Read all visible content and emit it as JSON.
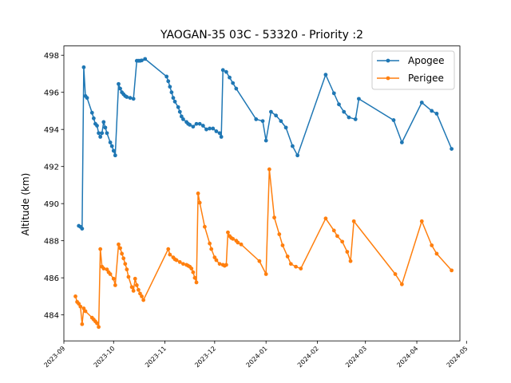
{
  "chart_data": {
    "type": "line",
    "title": "YAOGAN-35 03C - 53320 - Priority :2",
    "xlabel": "",
    "ylabel": "Altitude (km)",
    "x_axis_type": "date",
    "xlim": [
      "2023-09-01",
      "2024-04-27"
    ],
    "ylim": [
      482.6,
      498.5
    ],
    "x_ticks": [
      "2023-09",
      "2023-10",
      "2023-11",
      "2023-12",
      "2024-01",
      "2024-02",
      "2024-03",
      "2024-04",
      "2024-05"
    ],
    "y_ticks": [
      484,
      486,
      488,
      490,
      492,
      494,
      496,
      498
    ],
    "grid": false,
    "legend": "top-right",
    "series": [
      {
        "name": "Apogee",
        "color": "#1f77b4",
        "marker": "circle",
        "points": [
          [
            "2023-09-10",
            488.8
          ],
          [
            "2023-09-11",
            488.75
          ],
          [
            "2023-09-12",
            488.65
          ],
          [
            "2023-09-13",
            497.35
          ],
          [
            "2023-09-14",
            495.8
          ],
          [
            "2023-09-15",
            495.7
          ],
          [
            "2023-09-18",
            494.9
          ],
          [
            "2023-09-19",
            494.6
          ],
          [
            "2023-09-20",
            494.3
          ],
          [
            "2023-09-21",
            494.2
          ],
          [
            "2023-09-22",
            493.8
          ],
          [
            "2023-09-23",
            493.6
          ],
          [
            "2023-09-24",
            493.8
          ],
          [
            "2023-09-25",
            494.4
          ],
          [
            "2023-09-26",
            494.1
          ],
          [
            "2023-09-27",
            493.8
          ],
          [
            "2023-09-29",
            493.3
          ],
          [
            "2023-09-30",
            493.1
          ],
          [
            "2023-10-01",
            492.85
          ],
          [
            "2023-10-02",
            492.6
          ],
          [
            "2023-10-04",
            496.45
          ],
          [
            "2023-10-05",
            496.2
          ],
          [
            "2023-10-06",
            496.0
          ],
          [
            "2023-10-07",
            495.9
          ],
          [
            "2023-10-08",
            495.8
          ],
          [
            "2023-10-09",
            495.75
          ],
          [
            "2023-10-11",
            495.7
          ],
          [
            "2023-10-13",
            495.65
          ],
          [
            "2023-10-15",
            497.7
          ],
          [
            "2023-10-16",
            497.7
          ],
          [
            "2023-10-17",
            497.7
          ],
          [
            "2023-10-18",
            497.72
          ],
          [
            "2023-10-20",
            497.8
          ],
          [
            "2023-11-02",
            496.85
          ],
          [
            "2023-11-03",
            496.6
          ],
          [
            "2023-11-04",
            496.3
          ],
          [
            "2023-11-05",
            496.0
          ],
          [
            "2023-11-06",
            495.7
          ],
          [
            "2023-11-07",
            495.5
          ],
          [
            "2023-11-09",
            495.2
          ],
          [
            "2023-11-10",
            494.95
          ],
          [
            "2023-11-11",
            494.7
          ],
          [
            "2023-11-12",
            494.55
          ],
          [
            "2023-11-14",
            494.4
          ],
          [
            "2023-11-15",
            494.3
          ],
          [
            "2023-11-16",
            494.25
          ],
          [
            "2023-11-18",
            494.15
          ],
          [
            "2023-11-20",
            494.3
          ],
          [
            "2023-11-22",
            494.3
          ],
          [
            "2023-11-24",
            494.2
          ],
          [
            "2023-11-26",
            494.0
          ],
          [
            "2023-11-28",
            494.05
          ],
          [
            "2023-11-30",
            494.05
          ],
          [
            "2023-12-02",
            493.9
          ],
          [
            "2023-12-04",
            493.8
          ],
          [
            "2023-12-05",
            493.6
          ],
          [
            "2023-12-06",
            497.2
          ],
          [
            "2023-12-08",
            497.1
          ],
          [
            "2023-12-10",
            496.8
          ],
          [
            "2023-12-12",
            496.5
          ],
          [
            "2023-12-14",
            496.2
          ],
          [
            "2023-12-26",
            494.55
          ],
          [
            "2023-12-30",
            494.45
          ],
          [
            "2024-01-01",
            493.4
          ],
          [
            "2024-01-04",
            494.95
          ],
          [
            "2024-01-07",
            494.75
          ],
          [
            "2024-01-10",
            494.45
          ],
          [
            "2024-01-13",
            494.1
          ],
          [
            "2024-01-17",
            493.1
          ],
          [
            "2024-01-20",
            492.6
          ],
          [
            "2024-02-06",
            496.95
          ],
          [
            "2024-02-11",
            495.95
          ],
          [
            "2024-02-14",
            495.35
          ],
          [
            "2024-02-17",
            494.95
          ],
          [
            "2024-02-20",
            494.65
          ],
          [
            "2024-02-24",
            494.55
          ],
          [
            "2024-02-26",
            495.65
          ],
          [
            "2024-03-18",
            494.5
          ],
          [
            "2024-03-23",
            493.3
          ],
          [
            "2024-04-04",
            495.45
          ],
          [
            "2024-04-10",
            495.0
          ],
          [
            "2024-04-13",
            494.85
          ],
          [
            "2024-04-22",
            492.95
          ]
        ]
      },
      {
        "name": "Perigee",
        "color": "#ff7f0e",
        "marker": "circle",
        "points": [
          [
            "2023-09-08",
            485.0
          ],
          [
            "2023-09-09",
            484.7
          ],
          [
            "2023-09-10",
            484.6
          ],
          [
            "2023-09-11",
            484.45
          ],
          [
            "2023-09-12",
            483.5
          ],
          [
            "2023-09-13",
            484.35
          ],
          [
            "2023-09-14",
            484.2
          ],
          [
            "2023-09-18",
            483.85
          ],
          [
            "2023-09-19",
            483.75
          ],
          [
            "2023-09-20",
            483.65
          ],
          [
            "2023-09-21",
            483.55
          ],
          [
            "2023-09-22",
            483.35
          ],
          [
            "2023-09-23",
            487.55
          ],
          [
            "2023-09-24",
            486.6
          ],
          [
            "2023-09-25",
            486.5
          ],
          [
            "2023-09-27",
            486.45
          ],
          [
            "2023-09-28",
            486.3
          ],
          [
            "2023-09-29",
            486.2
          ],
          [
            "2023-10-01",
            485.95
          ],
          [
            "2023-10-02",
            485.6
          ],
          [
            "2023-10-04",
            487.8
          ],
          [
            "2023-10-05",
            487.6
          ],
          [
            "2023-10-06",
            487.3
          ],
          [
            "2023-10-07",
            487.05
          ],
          [
            "2023-10-08",
            486.75
          ],
          [
            "2023-10-09",
            486.45
          ],
          [
            "2023-10-10",
            486.05
          ],
          [
            "2023-10-12",
            485.5
          ],
          [
            "2023-10-13",
            485.3
          ],
          [
            "2023-10-14",
            485.95
          ],
          [
            "2023-10-15",
            485.6
          ],
          [
            "2023-10-16",
            485.35
          ],
          [
            "2023-10-17",
            485.15
          ],
          [
            "2023-10-18",
            485.0
          ],
          [
            "2023-10-19",
            484.8
          ],
          [
            "2023-11-03",
            487.55
          ],
          [
            "2023-11-04",
            487.25
          ],
          [
            "2023-11-06",
            487.1
          ],
          [
            "2023-11-07",
            487.0
          ],
          [
            "2023-11-08",
            486.95
          ],
          [
            "2023-11-10",
            486.85
          ],
          [
            "2023-11-12",
            486.75
          ],
          [
            "2023-11-14",
            486.7
          ],
          [
            "2023-11-15",
            486.65
          ],
          [
            "2023-11-16",
            486.6
          ],
          [
            "2023-11-17",
            486.5
          ],
          [
            "2023-11-18",
            486.3
          ],
          [
            "2023-11-19",
            486.0
          ],
          [
            "2023-11-20",
            485.75
          ],
          [
            "2023-11-21",
            490.55
          ],
          [
            "2023-11-22",
            490.05
          ],
          [
            "2023-11-25",
            488.75
          ],
          [
            "2023-11-28",
            487.85
          ],
          [
            "2023-11-29",
            487.55
          ],
          [
            "2023-12-01",
            487.1
          ],
          [
            "2023-12-02",
            486.95
          ],
          [
            "2023-12-04",
            486.75
          ],
          [
            "2023-12-06",
            486.7
          ],
          [
            "2023-12-07",
            486.65
          ],
          [
            "2023-12-08",
            486.7
          ],
          [
            "2023-12-09",
            488.45
          ],
          [
            "2023-12-10",
            488.25
          ],
          [
            "2023-12-11",
            488.15
          ],
          [
            "2023-12-12",
            488.1
          ],
          [
            "2023-12-14",
            488.0
          ],
          [
            "2023-12-15",
            487.9
          ],
          [
            "2023-12-17",
            487.8
          ],
          [
            "2023-12-28",
            486.9
          ],
          [
            "2024-01-01",
            486.2
          ],
          [
            "2024-01-03",
            491.85
          ],
          [
            "2024-01-06",
            489.25
          ],
          [
            "2024-01-09",
            488.35
          ],
          [
            "2024-01-11",
            487.75
          ],
          [
            "2024-01-14",
            487.15
          ],
          [
            "2024-01-16",
            486.75
          ],
          [
            "2024-01-19",
            486.6
          ],
          [
            "2024-01-22",
            486.5
          ],
          [
            "2024-02-06",
            489.2
          ],
          [
            "2024-02-11",
            488.55
          ],
          [
            "2024-02-13",
            488.25
          ],
          [
            "2024-02-16",
            487.95
          ],
          [
            "2024-02-19",
            487.4
          ],
          [
            "2024-02-21",
            486.9
          ],
          [
            "2024-02-23",
            489.05
          ],
          [
            "2024-03-19",
            486.2
          ],
          [
            "2024-03-23",
            485.65
          ],
          [
            "2024-04-04",
            489.05
          ],
          [
            "2024-04-10",
            487.75
          ],
          [
            "2024-04-13",
            487.3
          ],
          [
            "2024-04-22",
            486.4
          ]
        ]
      }
    ]
  }
}
